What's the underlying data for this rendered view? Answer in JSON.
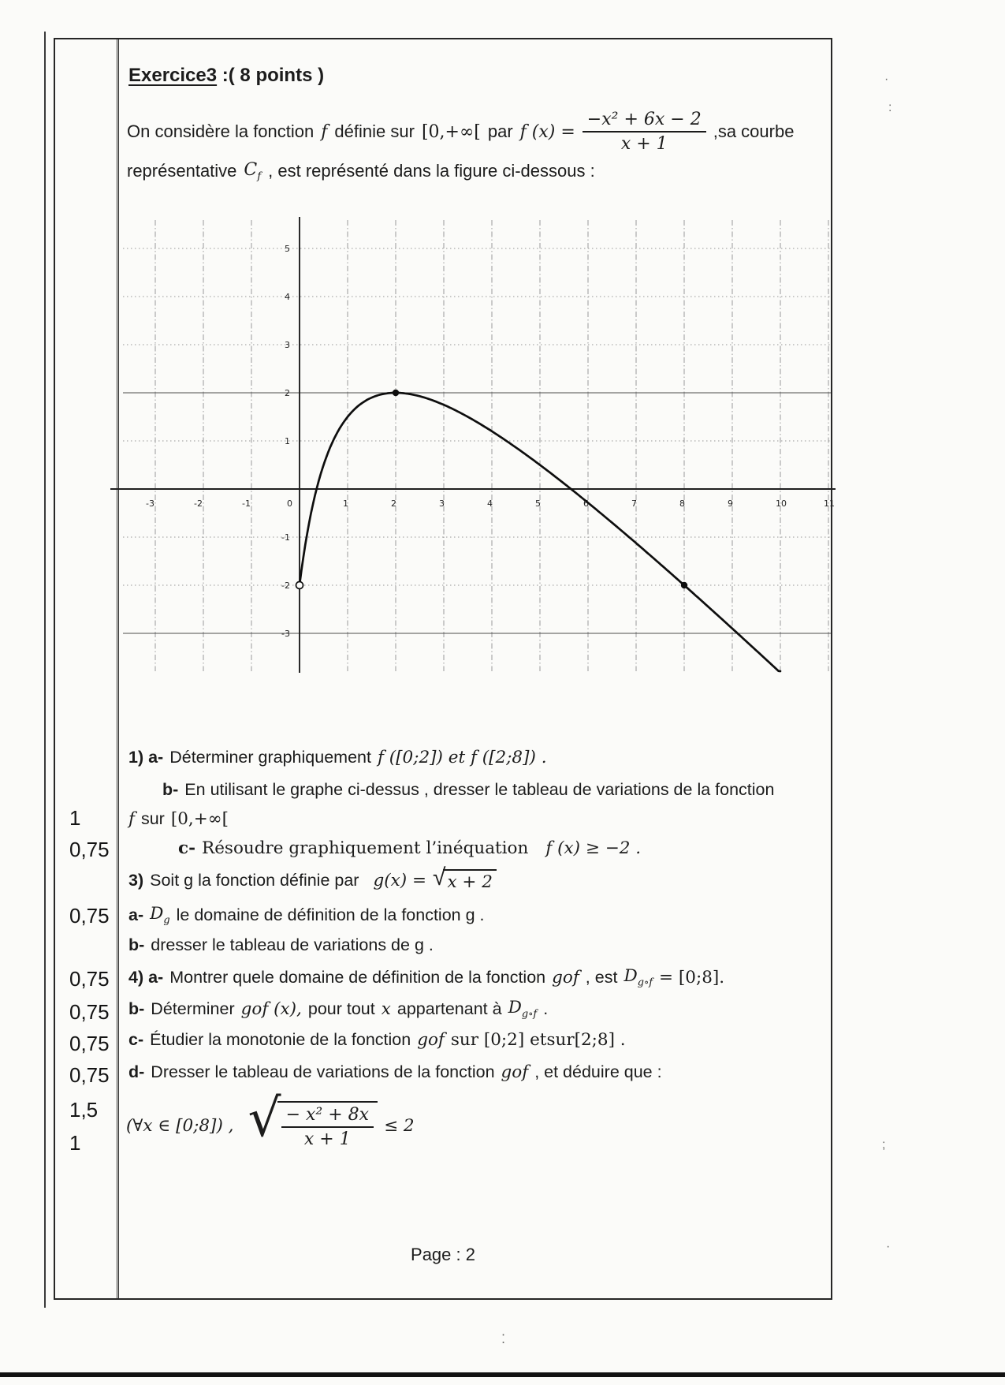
{
  "title": {
    "underlined": "Exercice3",
    "rest": " :( 8 points )"
  },
  "intro": {
    "p1": "On considère la fonction",
    "f_symbol": "f",
    "p2": "définie sur",
    "domain": "[0,+∞[",
    "p3": "par",
    "fx": "f (x) =",
    "frac_num": "−x² + 6x − 2",
    "frac_den": "x + 1",
    "p4": ",sa courbe",
    "p5": "représentative",
    "cf_base": "C",
    "cf_sub": "f",
    "p6": ", est représenté dans la figure ci-dessous :"
  },
  "chart_data": {
    "type": "line",
    "title": "",
    "xlabel": "",
    "ylabel": "",
    "curve": {
      "formula": "f(x) = (−x²+6x−2)/(x+1)",
      "numerator_coeffs": [
        -1,
        6,
        -2
      ],
      "denominator_coeffs": [
        1,
        1
      ],
      "x_plot_range": [
        0,
        10.2
      ]
    },
    "x_tick_labels": [
      -3,
      -2,
      -1,
      0,
      1,
      2,
      3,
      4,
      5,
      6,
      7,
      8,
      9,
      10,
      11
    ],
    "y_tick_labels": [
      5,
      4,
      3,
      2,
      1,
      -1,
      -2,
      -3
    ],
    "xlim": [
      -3.8,
      11.3
    ],
    "ylim": [
      -3.8,
      5.4
    ],
    "grid": true,
    "solid_horizontal_lines": [
      2,
      -3
    ],
    "marked_points": [
      [
        2,
        2
      ],
      [
        8,
        -2
      ]
    ],
    "endpoint_open_circle": [
      0,
      -2
    ],
    "key_points_on_curve": [
      [
        0,
        -2
      ],
      [
        2,
        2
      ],
      [
        8,
        -2
      ]
    ]
  },
  "questions": {
    "q1a": {
      "label": "1) a-",
      "text": "Déterminer graphiquement",
      "math": "f ([0;2]) et f ([2;8]) ."
    },
    "q1b": {
      "label": "b-",
      "text": "En utilisant le graphe ci-dessus , dresser le tableau de variations de la fonction"
    },
    "q1b2": {
      "f_symbol": "f",
      "mid": "sur",
      "interval": "[0,+∞["
    },
    "q1c": {
      "label": "c-",
      "text": "Résoudre graphiquement l’inéquation",
      "math": "f (x) ≥ −2 ."
    },
    "q3": {
      "label": "3)",
      "text": "Soit g la fonction définie par",
      "math_pre": "g(x) =",
      "sqrt_content": "x + 2"
    },
    "q3a": {
      "label": "a-",
      "pre": "Déterminer",
      "d_base": "D",
      "d_sub": "g",
      "post": "le domaine de définition de la fonction  g ."
    },
    "q3b": {
      "label": "b-",
      "text": "dresser le tableau de variations de g ."
    },
    "q4a": {
      "label": "4) a-",
      "pre": "Montrer quele domaine de définition de la fonction",
      "gof": "gof",
      "mid": ", est",
      "d_base": "D",
      "d_sub": "g∘f",
      "post": "= [0;8]."
    },
    "q4b": {
      "label": "b-",
      "pre": "Déterminer",
      "gofx": "gof (x),",
      "mid": "pour tout",
      "x_symbol": "x",
      "post": "appartenant à",
      "d_base": "D",
      "d_sub": "g∘f",
      "end": "."
    },
    "q4c": {
      "label": "c-",
      "pre": "Étudier la monotonie de la fonction",
      "gof": "gof",
      "post": "sur [0;2]  etsur[2;8] ."
    },
    "q4d": {
      "label": "d-",
      "pre": "Dresser le tableau de variations de la fonction",
      "gof": "gof",
      "post": ", et déduire que :"
    },
    "q4d2": {
      "pre": "(∀x ∈ [0;8]) ,",
      "num": "− x² + 8x",
      "den": "x + 1",
      "post": "≤ 2"
    }
  },
  "margin_points": [
    "1",
    "0,75",
    "0,75",
    "0,75",
    "0,75",
    "0,75",
    "0,75",
    "1,5",
    "1"
  ],
  "footer": {
    "page_label": "Page : 2"
  }
}
